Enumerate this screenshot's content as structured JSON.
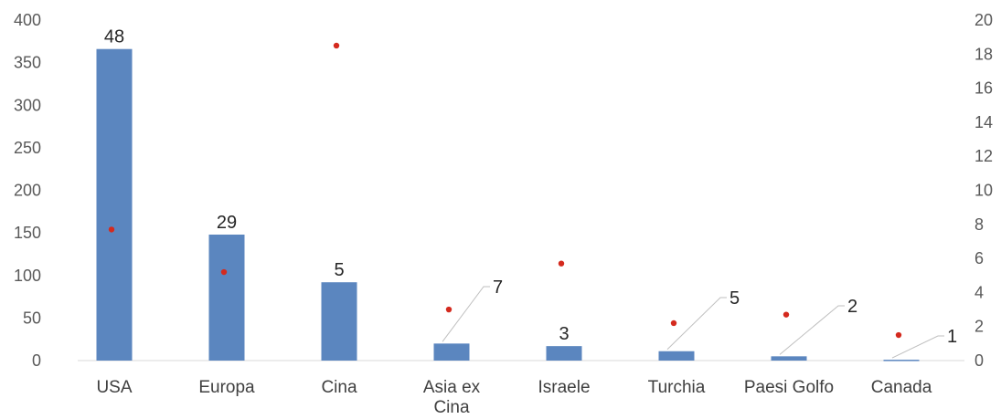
{
  "chart_data": {
    "type": "bar",
    "title": "",
    "xlabel": "",
    "ylabel": "",
    "categories": [
      "USA",
      "Europa",
      "Cina",
      "Asia ex Cina",
      "Israele",
      "Turchia",
      "Paesi Golfo",
      "Canada"
    ],
    "series": [
      {
        "type": "bar",
        "axis": "left",
        "color": "#5b86bf",
        "values": [
          366,
          148,
          92,
          20,
          17,
          11,
          5,
          1
        ],
        "data_labels": [
          "48",
          "29",
          "5",
          "7",
          "3",
          "5",
          "2",
          "1"
        ]
      },
      {
        "type": "scatter",
        "axis": "right",
        "color": "#d42a1e",
        "values": [
          7.7,
          5.2,
          18.5,
          3.0,
          5.7,
          2.2,
          2.7,
          1.5
        ]
      }
    ],
    "y_left": {
      "ylim": [
        0,
        400
      ],
      "ticks": [
        "0",
        "50",
        "100",
        "150",
        "200",
        "250",
        "300",
        "350",
        "400"
      ]
    },
    "y_right": {
      "ylim": [
        0,
        20
      ],
      "ticks": [
        "0",
        "2",
        "4",
        "6",
        "8",
        "10",
        "12",
        "14",
        "16",
        "18",
        "20"
      ]
    },
    "grid": false,
    "legend": "none"
  }
}
